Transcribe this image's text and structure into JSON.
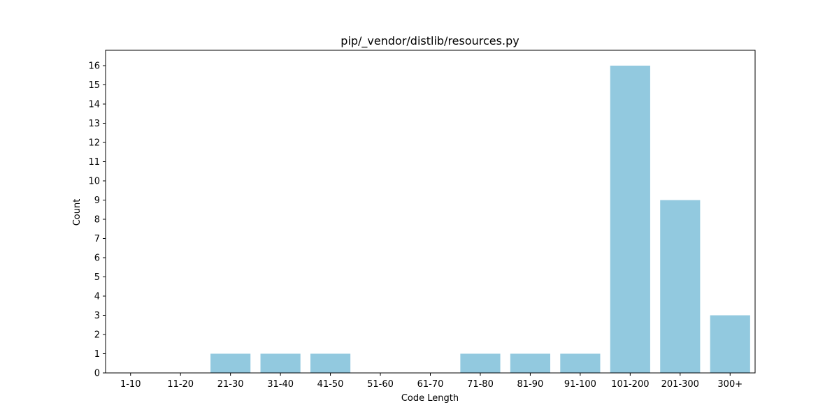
{
  "chart_data": {
    "type": "bar",
    "title": "pip/_vendor/distlib/resources.py",
    "xlabel": "Code Length",
    "ylabel": "Count",
    "categories": [
      "1-10",
      "11-20",
      "21-30",
      "31-40",
      "41-50",
      "51-60",
      "61-70",
      "71-80",
      "81-90",
      "91-100",
      "101-200",
      "201-300",
      "300+"
    ],
    "values": [
      0,
      0,
      1,
      1,
      1,
      0,
      0,
      1,
      1,
      1,
      16,
      9,
      3
    ],
    "ylim": [
      0,
      16.8
    ],
    "yticks": [
      0,
      1,
      2,
      3,
      4,
      5,
      6,
      7,
      8,
      9,
      10,
      11,
      12,
      13,
      14,
      15,
      16
    ],
    "grid": false,
    "bar_color": "#92c9df"
  }
}
